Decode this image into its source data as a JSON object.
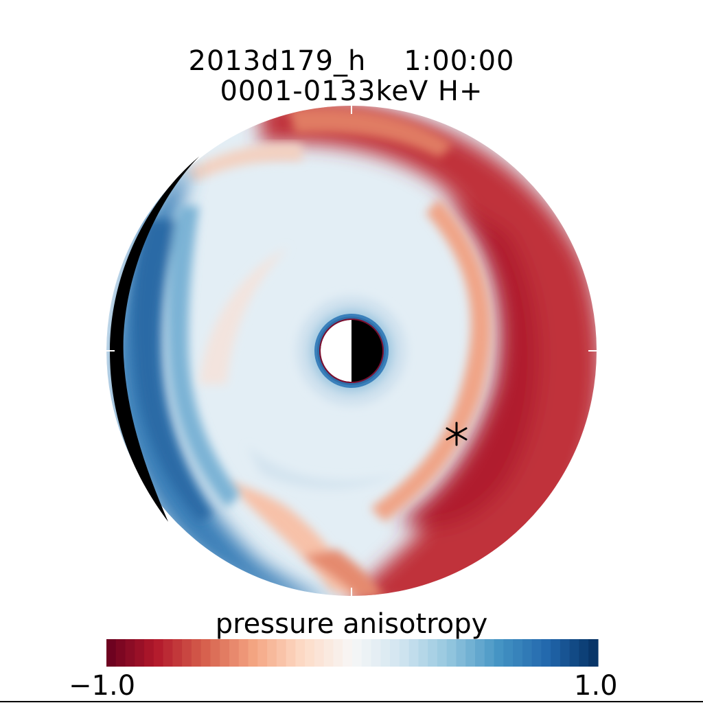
{
  "chart_data": {
    "type": "heatmap",
    "title_line1": "2013d179_h    1:00:00",
    "title_line2": "0001-0133keV H+",
    "colorbar": {
      "label": "pressure anisotropy",
      "min": -1.0,
      "max": 1.0,
      "min_label": "−1.0",
      "max_label": "1.0",
      "colors": [
        "#67001f",
        "#b2182b",
        "#d6604d",
        "#f4a582",
        "#fddbc7",
        "#f7f7f7",
        "#d1e5f0",
        "#92c5de",
        "#4393c3",
        "#2166ac",
        "#053061"
      ]
    },
    "marker": {
      "symbol": "asterisk"
    }
  }
}
